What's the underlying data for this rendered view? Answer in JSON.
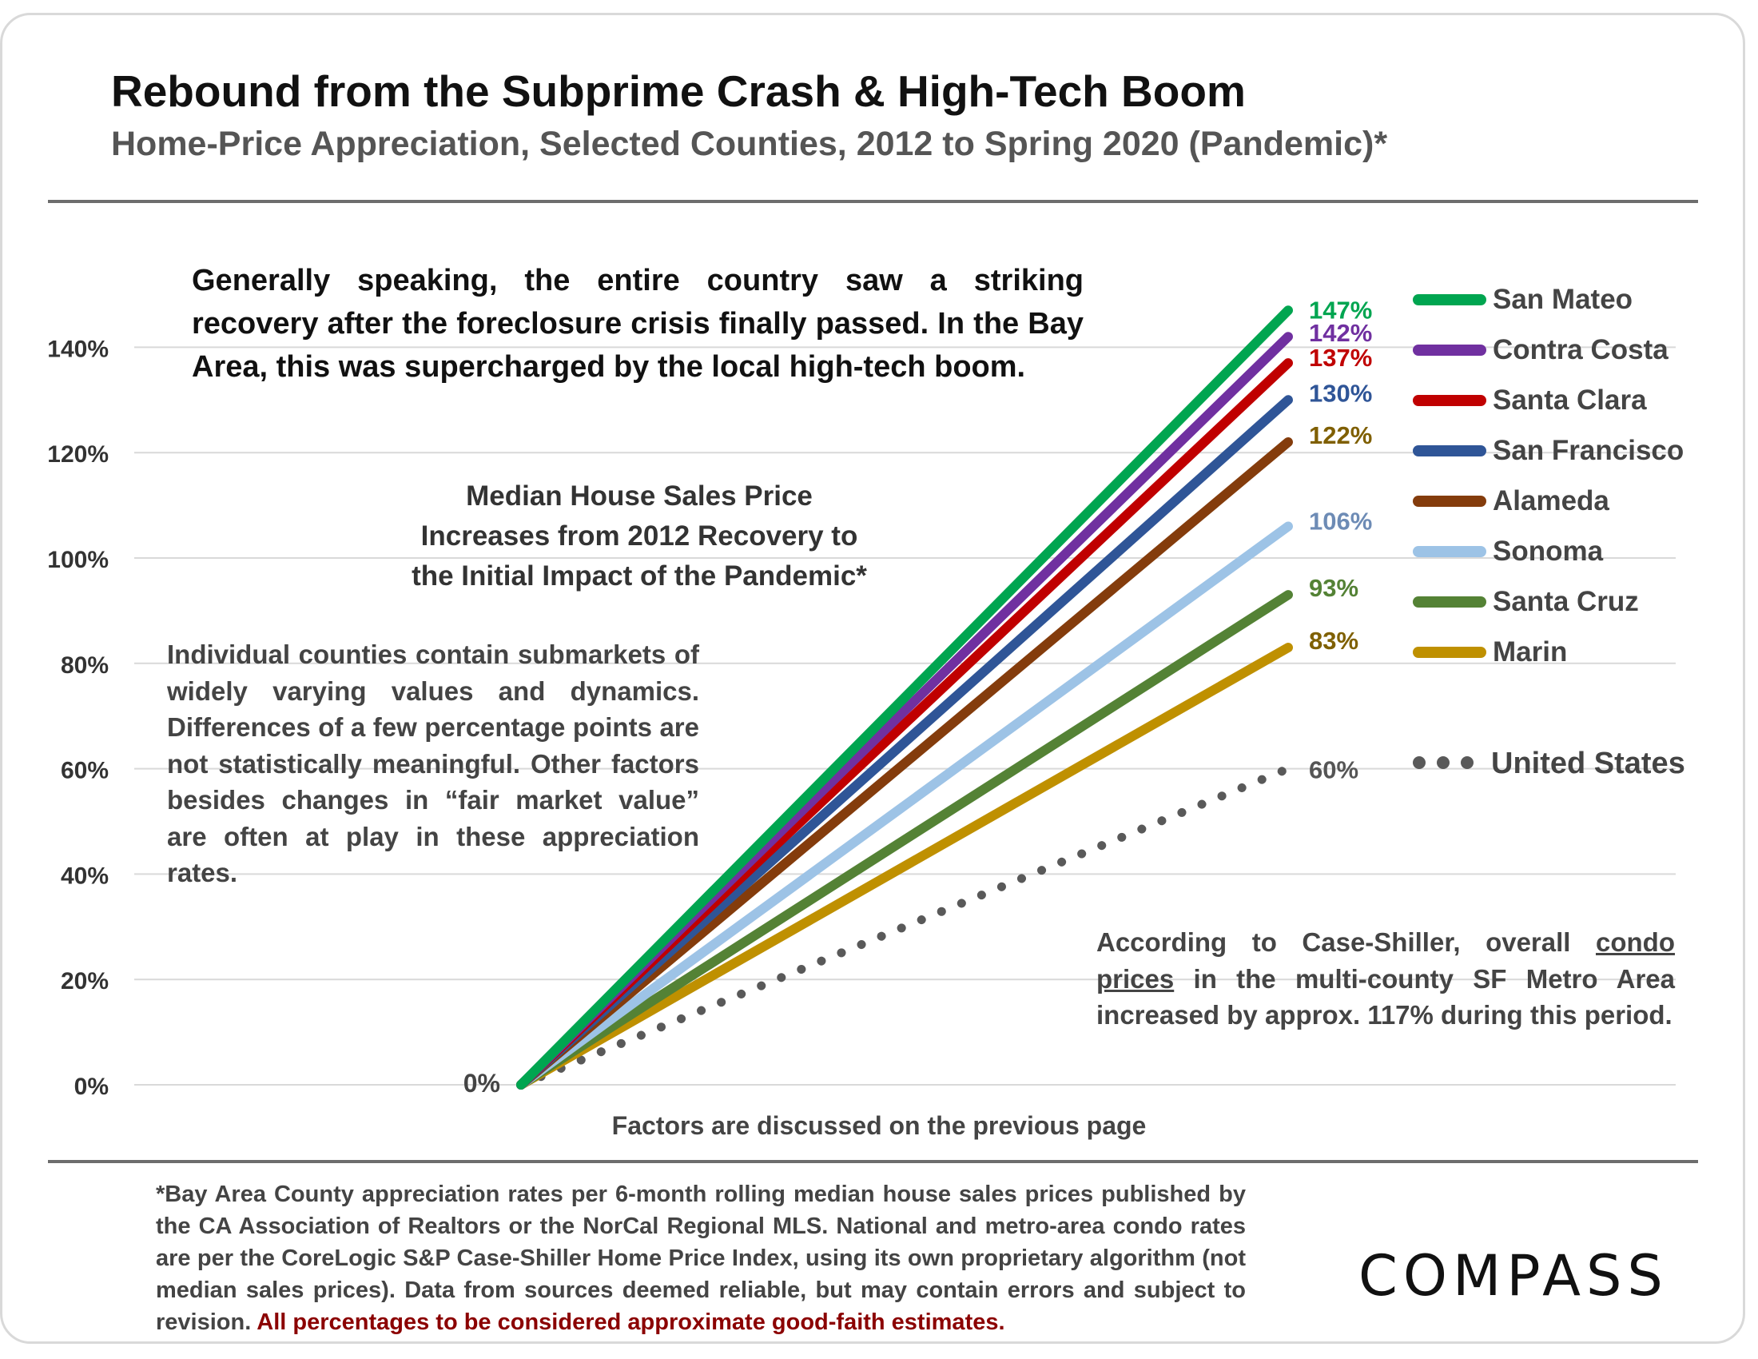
{
  "header": {
    "title": "Rebound from the Subprime Crash & High-Tech Boom",
    "subtitle": "Home-Price Appreciation, Selected Counties, 2012 to Spring 2020 (Pandemic)*"
  },
  "notes": {
    "main": "Generally speaking, the entire country saw a striking recovery after the foreclosure crisis finally passed. In the Bay Area, this was supercharged by the local high-tech boom.",
    "center_line1": "Median House Sales Price",
    "center_line2": "Increases from 2012 Recovery to",
    "center_line3": "the Initial Impact of the Pandemic*",
    "left": "Individual counties contain submarkets of widely varying values and dynamics. Differences of a few percentage points are not statistically meaningful. Other factors besides changes in “fair market value” are often at play in these appreciation rates.",
    "right_before": "According to Case-Shiller, overall ",
    "right_underlined": "condo prices",
    "right_after": " in the multi-county SF Metro Area increased by approx. 117% during this period.",
    "factors": "Factors are discussed on the previous page"
  },
  "footnote": {
    "text": "*Bay Area County appreciation rates per 6-month rolling median house sales prices published by the CA Association of Realtors or the NorCal Regional MLS. National and metro-area condo rates are per the CoreLogic S&P Case-Shiller Home Price Index, using its own proprietary algorithm (not median sales prices). Data from sources deemed reliable, but may contain errors and subject to revision. ",
    "highlight": "All percentages to be considered approximate good-faith estimates."
  },
  "brand": {
    "logo_text": "COMPASS"
  },
  "chart_data": {
    "type": "line",
    "title": "Rebound from the Subprime Crash & High-Tech Boom",
    "subtitle": "Home-Price Appreciation, Selected Counties, 2012 to Spring 2020 (Pandemic)*",
    "x": [
      "2012",
      "Spring 2020"
    ],
    "ylim": [
      0,
      150
    ],
    "yticks": [
      0,
      20,
      40,
      60,
      80,
      100,
      120,
      140
    ],
    "ytick_labels": [
      "0%",
      "20%",
      "40%",
      "60%",
      "80%",
      "100%",
      "120%",
      "140%"
    ],
    "start_label": "0%",
    "grid": true,
    "legend_position": "right",
    "series": [
      {
        "name": "San Mateo",
        "values": [
          0,
          147
        ],
        "end_label": "147%",
        "color": "#00a550",
        "label_color": "#00a550",
        "style": "solid"
      },
      {
        "name": "Contra Costa",
        "values": [
          0,
          142
        ],
        "end_label": "142%",
        "color": "#7030a0",
        "label_color": "#7030a0",
        "style": "solid"
      },
      {
        "name": "Santa Clara",
        "values": [
          0,
          137
        ],
        "end_label": "137%",
        "color": "#c00000",
        "label_color": "#c00000",
        "style": "solid"
      },
      {
        "name": "San Francisco",
        "values": [
          0,
          130
        ],
        "end_label": "130%",
        "color": "#2f5597",
        "label_color": "#2f5597",
        "style": "solid"
      },
      {
        "name": "Alameda",
        "values": [
          0,
          122
        ],
        "end_label": "122%",
        "color": "#843c0c",
        "label_color": "#7f5f00",
        "style": "solid"
      },
      {
        "name": "Sonoma",
        "values": [
          0,
          106
        ],
        "end_label": "106%",
        "color": "#9dc3e6",
        "label_color": "#6d8bb5",
        "style": "solid"
      },
      {
        "name": "Santa Cruz",
        "values": [
          0,
          93
        ],
        "end_label": "93%",
        "color": "#548235",
        "label_color": "#548235",
        "style": "solid"
      },
      {
        "name": "Marin",
        "values": [
          0,
          83
        ],
        "end_label": "83%",
        "color": "#bf9000",
        "label_color": "#7f6000",
        "style": "solid"
      },
      {
        "name": "United States",
        "values": [
          0,
          60
        ],
        "end_label": "60%",
        "color": "#595959",
        "label_color": "#555555",
        "style": "dotted"
      }
    ]
  }
}
